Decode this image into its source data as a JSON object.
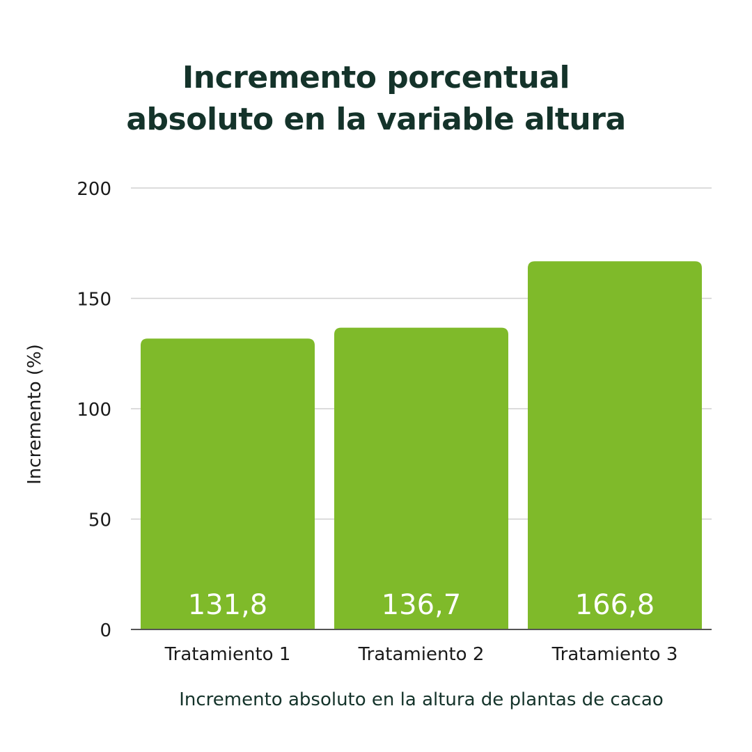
{
  "title": {
    "line1": "Incremento porcentual",
    "line2": "absoluto en la variable altura"
  },
  "colors": {
    "bar": "#7fba2a",
    "title": "#14332a",
    "grid": "#d0d0d0",
    "value_label": "#ffffff"
  },
  "chart_data": {
    "type": "bar",
    "categories": [
      "Tratamiento 1",
      "Tratamiento 2",
      "Tratamiento 3"
    ],
    "values": [
      131.8,
      136.7,
      166.8
    ],
    "value_labels": [
      "131,8",
      "136,7",
      "166,8"
    ],
    "xlabel": "Incremento absoluto en la altura de plantas de cacao",
    "ylabel": "Incremento (%)",
    "ylim": [
      0,
      200
    ],
    "yticks": [
      0,
      50,
      100,
      150,
      200
    ],
    "grid": true,
    "legend": "none"
  }
}
